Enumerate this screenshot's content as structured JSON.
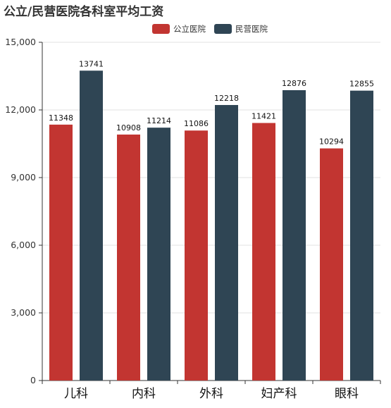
{
  "chart_data": {
    "type": "bar",
    "title": "公立/民营医院各科室平均工资",
    "categories": [
      "儿科",
      "内科",
      "外科",
      "妇产科",
      "眼科"
    ],
    "series": [
      {
        "name": "公立医院",
        "values": [
          11348,
          10908,
          11086,
          11421,
          10294
        ],
        "color": "#c23531"
      },
      {
        "name": "民营医院",
        "values": [
          13741,
          11214,
          12218,
          12876,
          12855
        ],
        "color": "#2f4554"
      }
    ],
    "y_ticks": [
      "0",
      "3,000",
      "6,000",
      "9,000",
      "12,000",
      "15,000"
    ],
    "ylim": [
      0,
      15000
    ],
    "legend_position": "top-center",
    "grid": true
  }
}
